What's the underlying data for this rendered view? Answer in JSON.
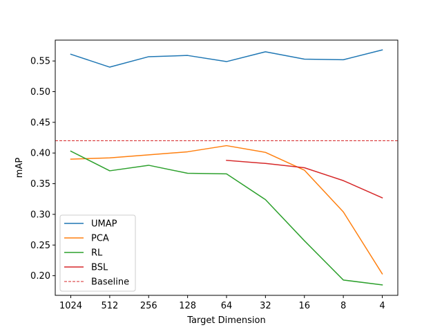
{
  "chart_data": {
    "type": "line",
    "title": "",
    "xlabel": "Target Dimension",
    "ylabel": "mAP",
    "categories": [
      "1024",
      "512",
      "256",
      "128",
      "64",
      "32",
      "16",
      "8",
      "4"
    ],
    "ylim": [
      0.168,
      0.584
    ],
    "yticks": [
      "0.20",
      "0.25",
      "0.30",
      "0.35",
      "0.40",
      "0.45",
      "0.50",
      "0.55"
    ],
    "ytick_values": [
      0.2,
      0.25,
      0.3,
      0.35,
      0.4,
      0.45,
      0.5,
      0.55
    ],
    "grid": false,
    "legend_position": "lower-left",
    "series": [
      {
        "name": "UMAP",
        "color": "#1f77b4",
        "style": "solid",
        "values": [
          0.561,
          0.54,
          0.557,
          0.559,
          0.549,
          0.565,
          0.553,
          0.552,
          0.568
        ]
      },
      {
        "name": "PCA",
        "color": "#ff7f0e",
        "style": "solid",
        "values": [
          0.39,
          0.392,
          0.397,
          0.402,
          0.412,
          0.401,
          0.372,
          0.304,
          0.203
        ]
      },
      {
        "name": "RL",
        "color": "#2ca02c",
        "style": "solid",
        "values": [
          0.403,
          0.371,
          0.38,
          0.367,
          0.366,
          0.324,
          0.257,
          0.193,
          0.185
        ]
      },
      {
        "name": "BSL",
        "color": "#d62728",
        "style": "solid",
        "values": [
          null,
          null,
          null,
          null,
          0.388,
          0.383,
          0.376,
          0.355,
          0.327
        ]
      }
    ],
    "reference_lines": [
      {
        "name": "Baseline",
        "color": "#d62728",
        "style": "dashed",
        "value": 0.42
      }
    ]
  }
}
